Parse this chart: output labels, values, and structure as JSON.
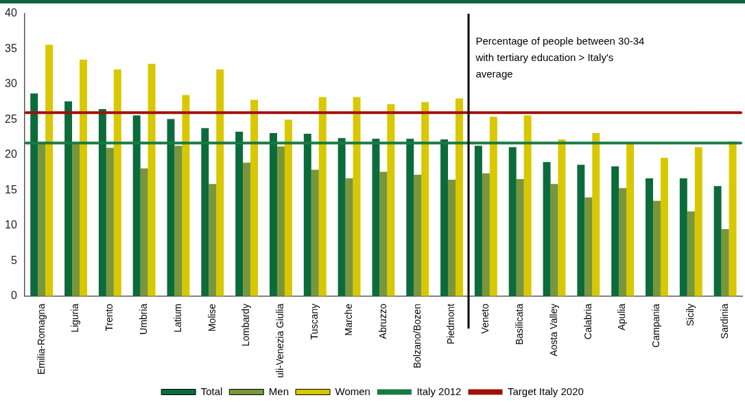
{
  "chart_data": {
    "type": "bar",
    "categories": [
      "Emilia-Romagna",
      "Liguria",
      "Trento",
      "Umbria",
      "Latium",
      "Molise",
      "Lombardy",
      "uli-Venezia Giulia",
      "Tuscany",
      "Marche",
      "Abruzzo",
      "Bolzano/Bozen",
      "Piedmont",
      "Veneto",
      "Basilicata",
      "Aosta Valley",
      "Calabria",
      "Apulia",
      "Campania",
      "Sicily",
      "Sardinia"
    ],
    "series": [
      {
        "name": "Total",
        "color": "#0b6b3a",
        "values": [
          28.7,
          27.6,
          26.5,
          25.6,
          25.1,
          23.8,
          23.3,
          23.1,
          23.0,
          22.4,
          22.3,
          22.3,
          22.2,
          21.3,
          21.1,
          19.0,
          18.6,
          18.4,
          16.7,
          16.7,
          15.6
        ]
      },
      {
        "name": "Men",
        "color": "#79963a",
        "values": [
          21.7,
          21.7,
          21.0,
          18.1,
          21.3,
          15.9,
          18.9,
          21.2,
          17.9,
          16.7,
          17.6,
          17.2,
          16.5,
          17.4,
          16.6,
          15.9,
          14.0,
          15.3,
          13.5,
          12.0,
          9.5
        ]
      },
      {
        "name": "Women",
        "color": "#d8c800",
        "values": [
          35.6,
          33.5,
          32.1,
          32.9,
          28.5,
          32.1,
          27.8,
          25.0,
          28.2,
          28.2,
          27.2,
          27.5,
          28.0,
          25.4,
          25.6,
          22.2,
          23.1,
          21.7,
          19.6,
          21.1,
          21.9
        ]
      }
    ],
    "ylim": [
      0,
      40
    ],
    "yticks": [
      0,
      5,
      10,
      15,
      20,
      25,
      30,
      35,
      40
    ],
    "grid": false,
    "legend": "bottom",
    "ref_lines": [
      {
        "axis": "y",
        "value": 21.7,
        "label": "Italy 2012",
        "color": "#1a7a45"
      },
      {
        "axis": "y",
        "value": 26,
        "label": "Target Italy 2020",
        "color": "#a01008"
      }
    ],
    "annotations": [
      "Percentage of people between 30-34 with tertiary education > Italy's average"
    ]
  }
}
